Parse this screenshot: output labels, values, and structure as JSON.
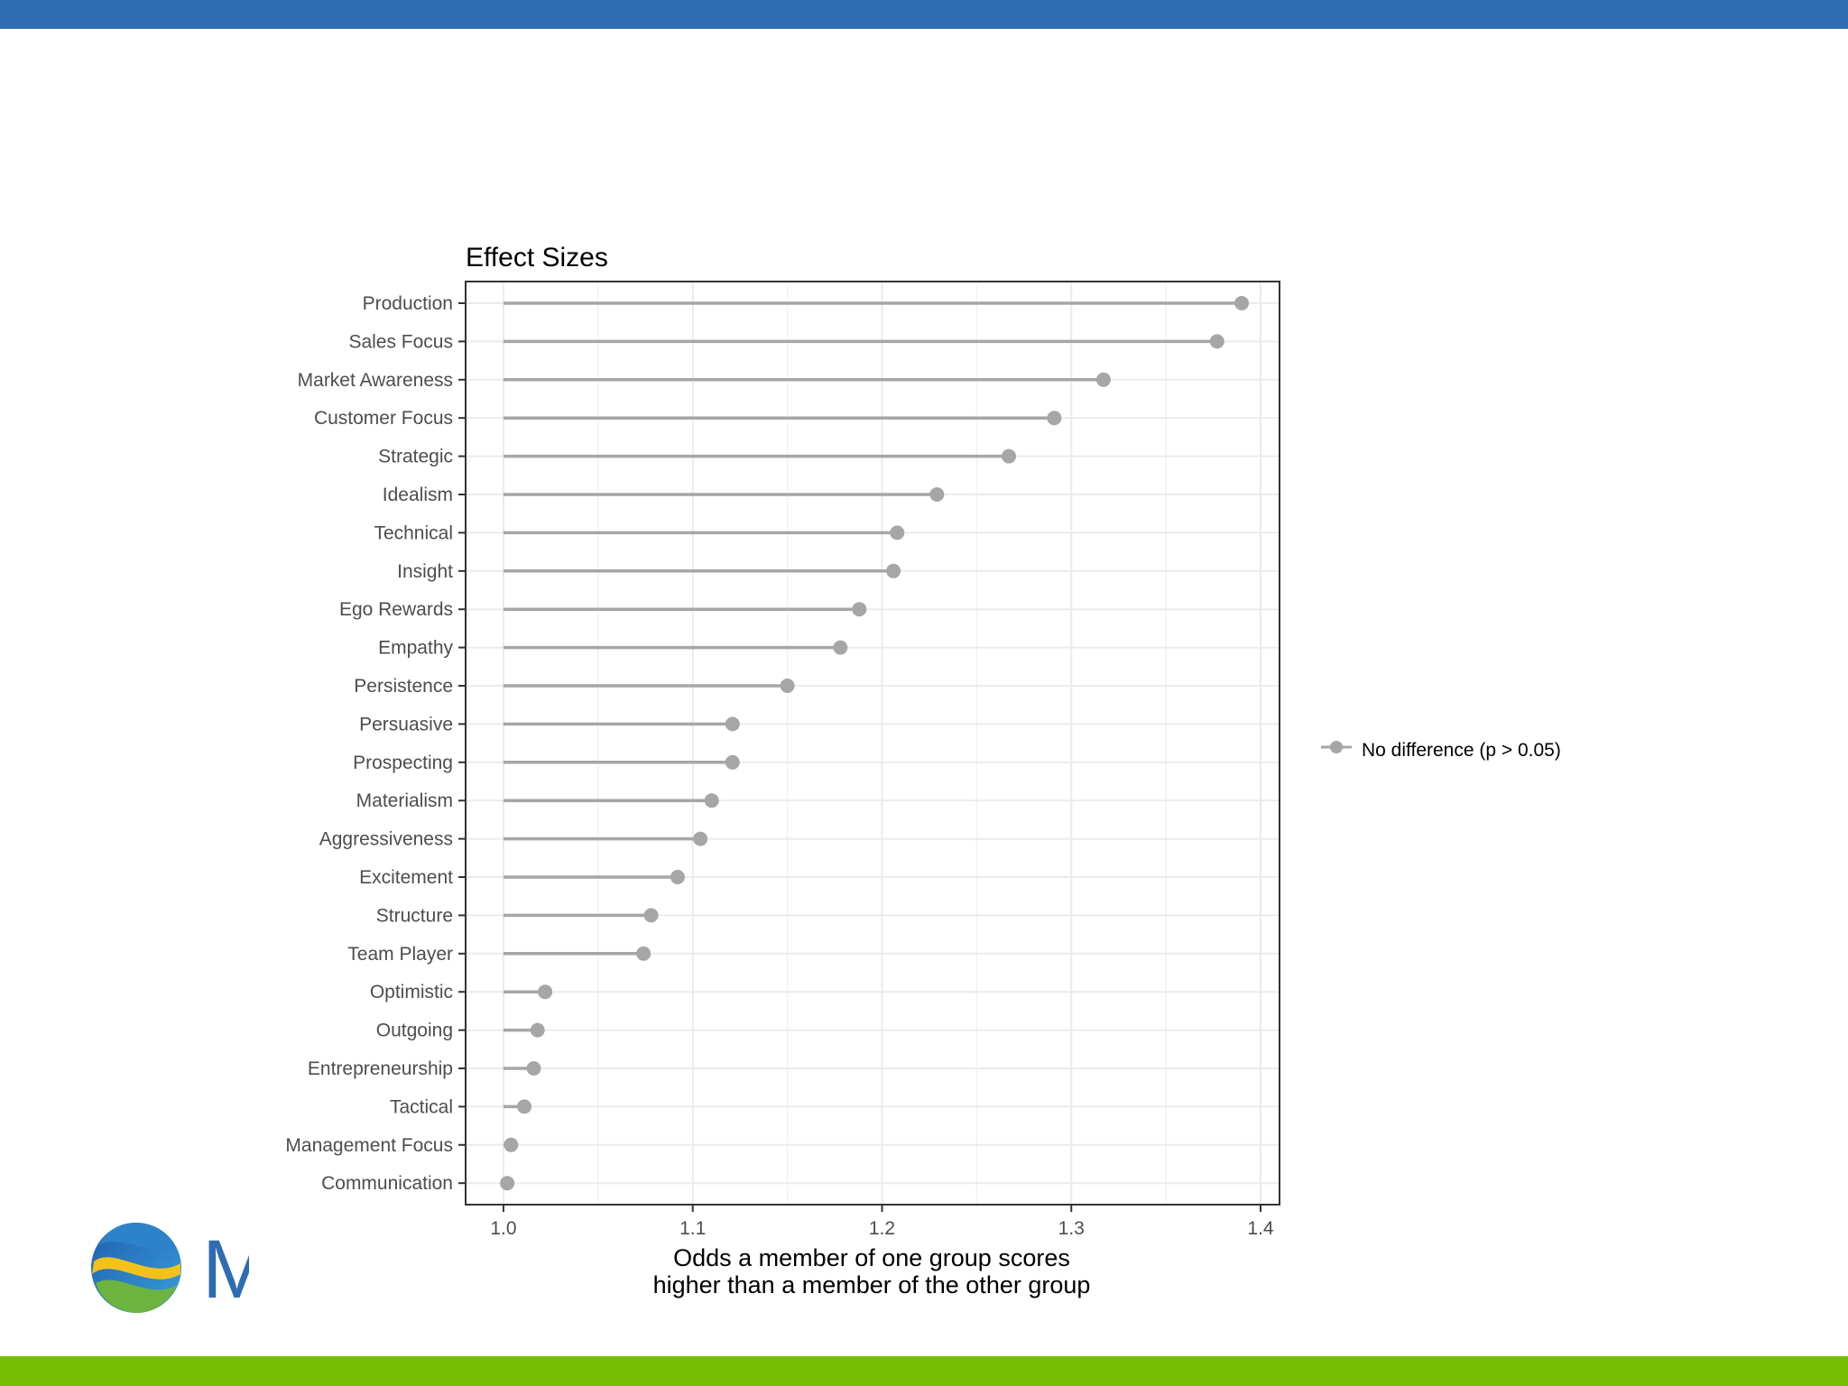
{
  "colors": {
    "header_bar": "#2f6db3",
    "footer_bar": "#78be05",
    "series": "#a6a6a6",
    "grid": "#ebebeb"
  },
  "logo": {
    "icon": "globe-swirl-logo-icon",
    "text": "M"
  },
  "chart_data": {
    "type": "lollipop",
    "title": "Effect Sizes",
    "xlabel": "Odds a member of one group scores\nhigher than a member of the other group",
    "ylabel": "",
    "xlim": [
      0.98,
      1.41
    ],
    "baseline": 1.0,
    "xticks": [
      1.0,
      1.1,
      1.2,
      1.3,
      1.4
    ],
    "xtick_labels": [
      "1.0",
      "1.1",
      "1.2",
      "1.3",
      "1.4"
    ],
    "grid": true,
    "legend": {
      "position": "right",
      "entries": [
        "No difference (p > 0.05)"
      ]
    },
    "categories": [
      "Production",
      "Sales Focus",
      "Market Awareness",
      "Customer Focus",
      "Strategic",
      "Idealism",
      "Technical",
      "Insight",
      "Ego Rewards",
      "Empathy",
      "Persistence",
      "Persuasive",
      "Prospecting",
      "Materialism",
      "Aggressiveness",
      "Excitement",
      "Structure",
      "Team Player",
      "Optimistic",
      "Outgoing",
      "Entrepreneurship",
      "Tactical",
      "Management Focus",
      "Communication"
    ],
    "series": [
      {
        "name": "No difference (p > 0.05)",
        "values": [
          1.39,
          1.377,
          1.317,
          1.291,
          1.267,
          1.229,
          1.208,
          1.206,
          1.188,
          1.178,
          1.15,
          1.121,
          1.121,
          1.11,
          1.104,
          1.092,
          1.078,
          1.074,
          1.022,
          1.018,
          1.016,
          1.011,
          1.004,
          1.002
        ]
      }
    ]
  }
}
